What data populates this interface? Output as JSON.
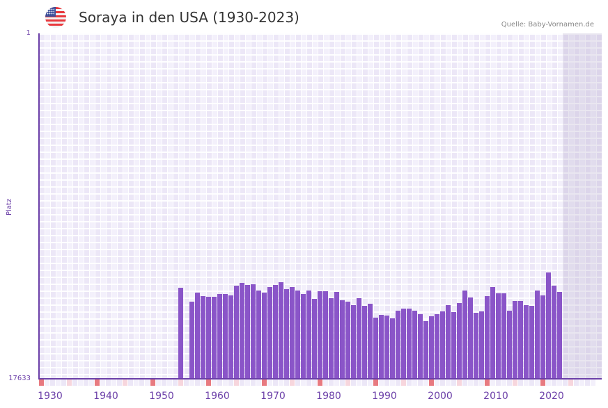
{
  "header": {
    "flag_icon": "us-flag-icon",
    "title": "Soraya in den USA (1930-2023)",
    "source": "Quelle: Baby-Vornamen.de"
  },
  "colors": {
    "bar": "#8a55c8",
    "axis": "#6b3fa8",
    "decade_marker": "#e87a80",
    "half_decade_marker": "#f7d6dd",
    "future_shade": "#e2dcef"
  },
  "chart_data": {
    "type": "bar",
    "title": "Soraya in den USA (1930-2023)",
    "xlabel": "",
    "ylabel": "Platz",
    "y_inverted": true,
    "ylim": [
      1,
      17633
    ],
    "y_tick_labels": [
      "1",
      "17633"
    ],
    "x_tick_labels": [
      "1930",
      "1940",
      "1950",
      "1960",
      "1970",
      "1980",
      "1990",
      "2000",
      "2010",
      "2020"
    ],
    "x_range": [
      1929,
      2029
    ],
    "future_shaded_from": 2023,
    "grid": true,
    "legend": null,
    "x": [
      1954,
      1956,
      1957,
      1958,
      1959,
      1960,
      1961,
      1962,
      1963,
      1964,
      1965,
      1966,
      1967,
      1968,
      1969,
      1970,
      1971,
      1972,
      1973,
      1974,
      1975,
      1976,
      1977,
      1978,
      1979,
      1980,
      1981,
      1982,
      1983,
      1984,
      1985,
      1986,
      1987,
      1988,
      1989,
      1990,
      1991,
      1992,
      1993,
      1994,
      1995,
      1996,
      1997,
      1998,
      1999,
      2000,
      2001,
      2002,
      2003,
      2004,
      2005,
      2006,
      2007,
      2008,
      2009,
      2010,
      2011,
      2012,
      2013,
      2014,
      2015,
      2016,
      2017,
      2018,
      2019,
      2020,
      2021,
      2022
    ],
    "values": [
      12986,
      13696,
      13235,
      13412,
      13448,
      13448,
      13306,
      13306,
      13377,
      12880,
      12738,
      12844,
      12809,
      13128,
      13235,
      12951,
      12844,
      12703,
      13057,
      12951,
      13128,
      13306,
      13128,
      13554,
      13164,
      13164,
      13519,
      13199,
      13625,
      13696,
      13873,
      13519,
      13909,
      13803,
      14512,
      14370,
      14406,
      14548,
      14157,
      14051,
      14051,
      14157,
      14335,
      14690,
      14441,
      14335,
      14193,
      13873,
      14228,
      13767,
      13128,
      13483,
      14264,
      14193,
      13412,
      12951,
      13270,
      13270,
      14157,
      13661,
      13661,
      13873,
      13909,
      13128,
      13377,
      12206,
      12880,
      13199
    ],
    "series": [
      {
        "name": "Soraya (Platz)",
        "values_ref": "values"
      }
    ]
  }
}
